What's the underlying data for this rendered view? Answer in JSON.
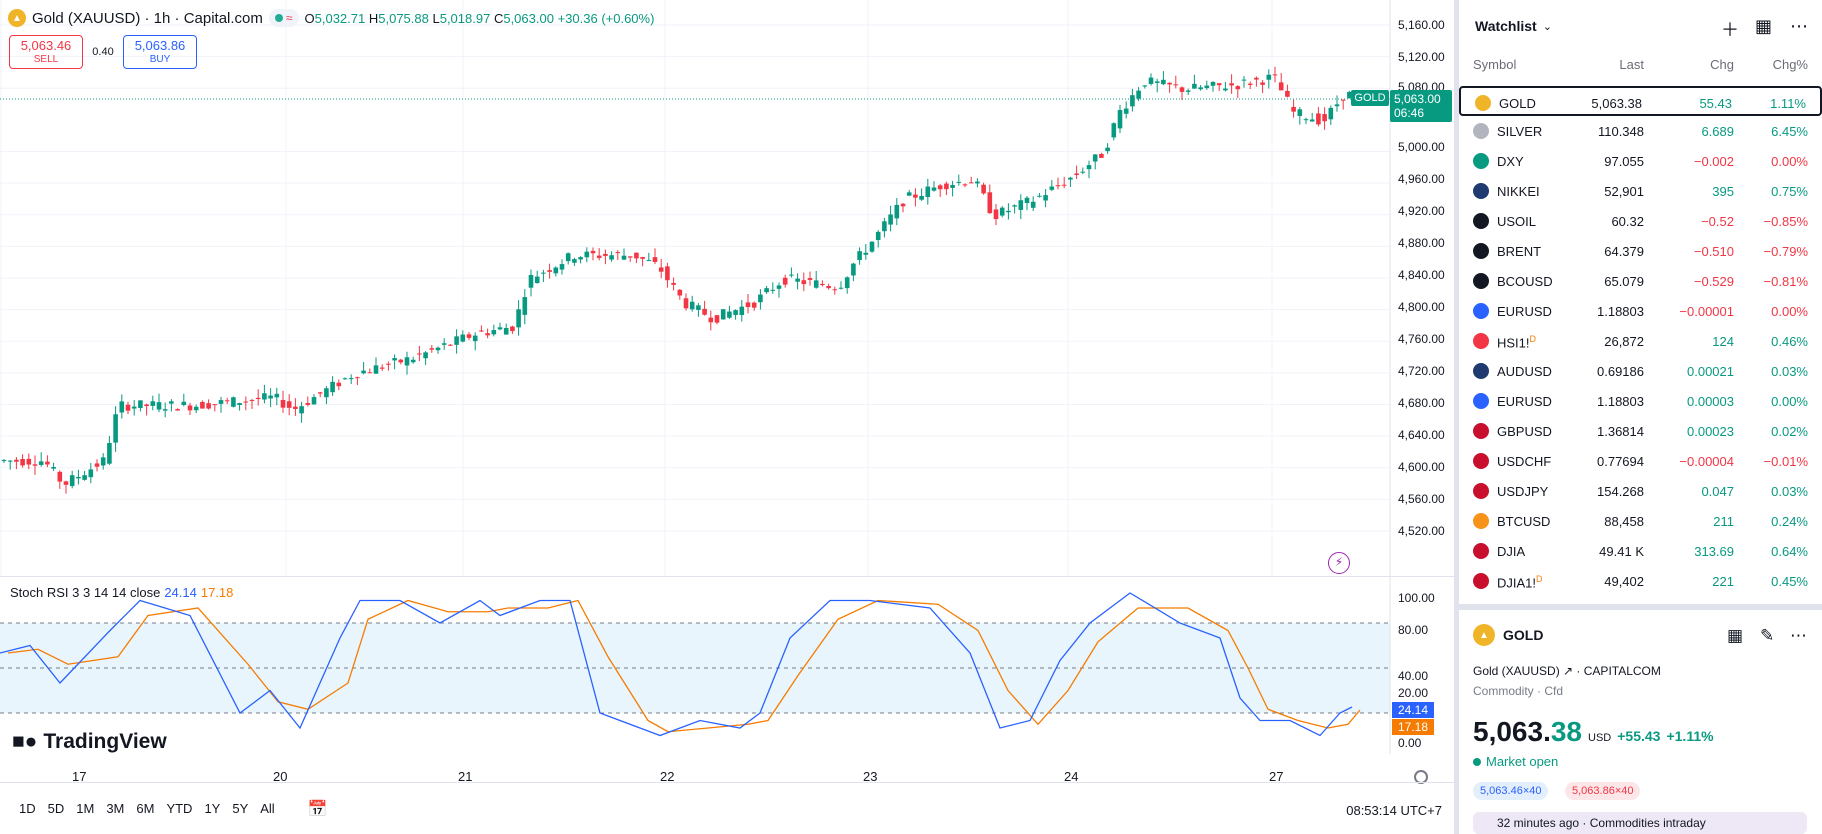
{
  "chart": {
    "symbol_title": "Gold (XAUUSD) · 1h · Capital.com",
    "ohlc": [
      {
        "label": "O",
        "value": "5,032.71"
      },
      {
        "label": "H",
        "value": "5,075.88"
      },
      {
        "label": "L",
        "value": "5,018.97"
      },
      {
        "label": "C",
        "value": "5,063.00"
      }
    ],
    "change": "+30.36 (+0.60%)",
    "sell_price": "5,063.46",
    "sell_label": "SELL",
    "spread": "0.40",
    "buy_price": "5,063.86",
    "buy_label": "BUY",
    "current_tag": "GOLD",
    "current_price": "5,063.00",
    "countdown": "06:46",
    "price_ticks": [
      "5,160.00",
      "5,120.00",
      "5,080.00",
      "5,000.00",
      "4,960.00",
      "4,920.00",
      "4,880.00",
      "4,840.00",
      "4,800.00",
      "4,760.00",
      "4,720.00",
      "4,680.00",
      "4,640.00",
      "4,600.00",
      "4,560.00",
      "4,520.00"
    ],
    "time_ticks": [
      "17",
      "20",
      "21",
      "22",
      "23",
      "24",
      "27"
    ],
    "osc_title": "Stoch RSI 3 3 14 14 close",
    "osc_k": "24.14",
    "osc_d": "17.18",
    "osc_ticks": [
      "100.00",
      "80.00",
      "40.00",
      "20.00",
      "0.00"
    ],
    "brand": "TradingView",
    "ranges": [
      "1D",
      "5D",
      "1M",
      "3M",
      "6M",
      "YTD",
      "1Y",
      "5Y",
      "All"
    ],
    "clock": "08:53:14 UTC+7",
    "colors": {
      "up": "#089981",
      "down": "#f23645",
      "k": "#2962ff",
      "d": "#f57c00"
    }
  },
  "chart_data": {
    "type": "candlestick",
    "title": "Gold (XAUUSD) · 1h · Capital.com",
    "ylim": [
      4500,
      5175
    ],
    "last": {
      "open": 5032.71,
      "high": 5075.88,
      "low": 5018.97,
      "close": 5063.0
    },
    "oscillator": {
      "name": "Stoch RSI 3 3 14 14 close",
      "k": 24.14,
      "d": 17.18,
      "ylim": [
        0,
        100
      ]
    },
    "x_labels": [
      "17",
      "20",
      "21",
      "22",
      "23",
      "24",
      "27"
    ]
  },
  "watchlist": {
    "title": "Watchlist",
    "cols": {
      "symbol": "Symbol",
      "last": "Last",
      "chg": "Chg",
      "pct": "Chg%"
    },
    "rows": [
      {
        "sym": "GOLD",
        "last": "5,063.38",
        "chg": "55.43",
        "pct": "1.11%",
        "dir": "pos",
        "icon": "#f0b429",
        "sup": ""
      },
      {
        "sym": "SILVER",
        "last": "110.348",
        "chg": "6.689",
        "pct": "6.45%",
        "dir": "pos",
        "icon": "#b2b5be",
        "sup": ""
      },
      {
        "sym": "DXY",
        "last": "97.055",
        "chg": "−0.002",
        "pct": "0.00%",
        "dir": "neg",
        "icon": "#089981",
        "sup": ""
      },
      {
        "sym": "NIKKEI",
        "last": "52,901",
        "chg": "395",
        "pct": "0.75%",
        "dir": "pos",
        "icon": "#1e3a6e",
        "sup": ""
      },
      {
        "sym": "USOIL",
        "last": "60.32",
        "chg": "−0.52",
        "pct": "−0.85%",
        "dir": "neg",
        "icon": "#131722",
        "sup": ""
      },
      {
        "sym": "BRENT",
        "last": "64.379",
        "chg": "−0.510",
        "pct": "−0.79%",
        "dir": "neg",
        "icon": "#131722",
        "sup": ""
      },
      {
        "sym": "BCOUSD",
        "last": "65.079",
        "chg": "−0.529",
        "pct": "−0.81%",
        "dir": "neg",
        "icon": "#131722",
        "sup": ""
      },
      {
        "sym": "EURUSD",
        "last": "1.18803",
        "chg": "−0.00001",
        "pct": "0.00%",
        "dir": "neg",
        "icon": "#2962ff",
        "sup": ""
      },
      {
        "sym": "HSI1!",
        "last": "26,872",
        "chg": "124",
        "pct": "0.46%",
        "dir": "pos",
        "icon": "#f23645",
        "sup": "D"
      },
      {
        "sym": "AUDUSD",
        "last": "0.69186",
        "chg": "0.00021",
        "pct": "0.03%",
        "dir": "pos",
        "icon": "#1e3a6e",
        "sup": ""
      },
      {
        "sym": "EURUSD",
        "last": "1.18803",
        "chg": "0.00003",
        "pct": "0.00%",
        "dir": "pos",
        "icon": "#2962ff",
        "sup": ""
      },
      {
        "sym": "GBPUSD",
        "last": "1.36814",
        "chg": "0.00023",
        "pct": "0.02%",
        "dir": "pos",
        "icon": "#c8102e",
        "sup": ""
      },
      {
        "sym": "USDCHF",
        "last": "0.77694",
        "chg": "−0.00004",
        "pct": "−0.01%",
        "dir": "neg",
        "icon": "#c8102e",
        "sup": ""
      },
      {
        "sym": "USDJPY",
        "last": "154.268",
        "chg": "0.047",
        "pct": "0.03%",
        "dir": "pos",
        "icon": "#c8102e",
        "sup": ""
      },
      {
        "sym": "BTCUSD",
        "last": "88,458",
        "chg": "211",
        "pct": "0.24%",
        "dir": "pos",
        "icon": "#f7931a",
        "sup": ""
      },
      {
        "sym": "DJIA",
        "last": "49.41 K",
        "chg": "313.69",
        "pct": "0.64%",
        "dir": "pos",
        "icon": "#c8102e",
        "sup": ""
      },
      {
        "sym": "DJIA1!",
        "last": "49,402",
        "chg": "221",
        "pct": "0.45%",
        "dir": "pos",
        "icon": "#c8102e",
        "sup": "D"
      }
    ]
  },
  "detail": {
    "symbol": "GOLD",
    "full_name": "Gold (XAUUSD)",
    "exchange": "CAPITALCOM",
    "category": "Commodity",
    "sub_category": "Cfd",
    "price_int": "5,063.",
    "price_frac": "38",
    "currency": "USD",
    "change": "+55.43",
    "change_pct": "+1.11%",
    "status": "Market open",
    "bid": "5,063.46×40",
    "ask": "5,063.86×40",
    "news_time": "32 minutes ago",
    "news_tag": "Commodities intraday"
  }
}
